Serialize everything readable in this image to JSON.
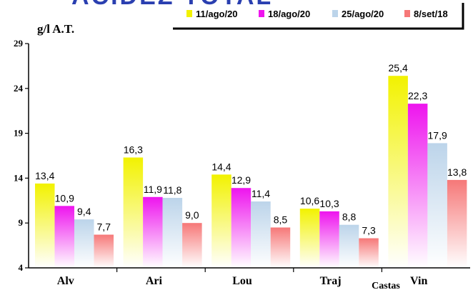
{
  "chart_data": {
    "type": "bar",
    "title": "ACIDEZ TOTAL",
    "ylabel": "g/l A.T.",
    "xlabel": "Castas",
    "ylim": [
      4,
      29
    ],
    "yticks": [
      4,
      9,
      14,
      19,
      24,
      29
    ],
    "categories": [
      "Alv",
      "Ari",
      "Lou",
      "Traj",
      "Vin"
    ],
    "series": [
      {
        "name": "11/ago/20",
        "color": "#f2f200",
        "values": [
          13.4,
          16.3,
          14.4,
          10.6,
          25.4
        ]
      },
      {
        "name": "18/ago/20",
        "color": "#ee14ee",
        "values": [
          10.9,
          11.9,
          12.9,
          10.3,
          22.3
        ]
      },
      {
        "name": "25/ago/20",
        "color": "#bcd4ea",
        "values": [
          9.4,
          11.8,
          11.4,
          8.8,
          17.9
        ]
      },
      {
        "name": "8/set/18",
        "color": "#f67878",
        "values": [
          7.7,
          9.0,
          8.5,
          7.3,
          13.8
        ]
      }
    ],
    "value_labels": [
      [
        "13,4",
        "16,3",
        "14,4",
        "10,6",
        "25,4"
      ],
      [
        "10,9",
        "11,9",
        "12,9",
        "10,3",
        "22,3"
      ],
      [
        "9,4",
        "11,8",
        "11,4",
        "8,8",
        "17,9"
      ],
      [
        "7,7",
        "9,0",
        "8,5",
        "7,3",
        "13,8"
      ]
    ],
    "legend_position": "top-right",
    "grid": false
  }
}
